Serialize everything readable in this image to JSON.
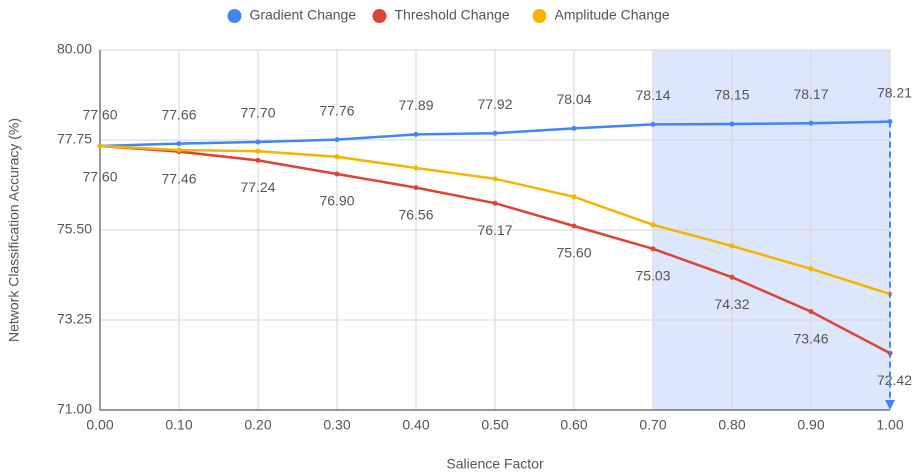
{
  "chart_data": {
    "type": "line",
    "x_label": "Salience Factor",
    "y_label": "Network Classification Accuracy (%)",
    "x": [
      0.0,
      0.1,
      0.2,
      0.3,
      0.4,
      0.5,
      0.6,
      0.7,
      0.8,
      0.9,
      1.0
    ],
    "xlim": [
      0,
      1
    ],
    "xticks": [
      {
        "value": 0,
        "label": "0.00"
      },
      {
        "value": 0.1,
        "label": "0.10"
      },
      {
        "value": 0.2,
        "label": "0.20"
      },
      {
        "value": 0.3,
        "label": "0.30"
      },
      {
        "value": 0.4,
        "label": "0.40"
      },
      {
        "value": 0.5,
        "label": "0.50"
      },
      {
        "value": 0.6,
        "label": "0.60"
      },
      {
        "value": 0.7,
        "label": "0.70"
      },
      {
        "value": 0.8,
        "label": "0.80"
      },
      {
        "value": 0.9,
        "label": "0.90"
      },
      {
        "value": 1,
        "label": "1.00"
      }
    ],
    "ylim": [
      71,
      80
    ],
    "yticks": [
      {
        "value": 71,
        "label": "71.00"
      },
      {
        "value": 73.25,
        "label": "73.25"
      },
      {
        "value": 75.5,
        "label": "75.50"
      },
      {
        "value": 77.75,
        "label": "77.75"
      },
      {
        "value": 80,
        "label": "80.00"
      }
    ],
    "grid": true,
    "legend": "top",
    "highlight_range": [
      0.7,
      1.0
    ],
    "highlight_color": "#dce7fb",
    "series": [
      {
        "name": "Gradient Change",
        "color": "#4285f4",
        "label_side": "above",
        "values": [
          77.6,
          77.66,
          77.7,
          77.76,
          77.89,
          77.92,
          78.04,
          78.14,
          78.15,
          78.17,
          78.21
        ],
        "value_labels": [
          "77.60",
          "77.66",
          "77.70",
          "77.76",
          "77.89",
          "77.92",
          "78.04",
          "78.14",
          "78.15",
          "78.17",
          "78.21"
        ]
      },
      {
        "name": "Threshold Change",
        "color": "#db4437",
        "label_side": "below",
        "values": [
          77.6,
          77.46,
          77.24,
          76.9,
          76.56,
          76.17,
          75.6,
          75.03,
          74.32,
          73.46,
          72.42
        ],
        "value_labels": [
          "77.60",
          "77.46",
          "77.24",
          "76.90",
          "76.56",
          "76.17",
          "75.60",
          "75.03",
          "74.32",
          "73.46",
          "72.42"
        ]
      },
      {
        "name": "Amplitude Change",
        "color": "#f4b400",
        "values": [
          77.6,
          77.5,
          77.47,
          77.33,
          77.05,
          76.78,
          76.33,
          75.63,
          75.1,
          74.53,
          73.9
        ]
      }
    ]
  }
}
